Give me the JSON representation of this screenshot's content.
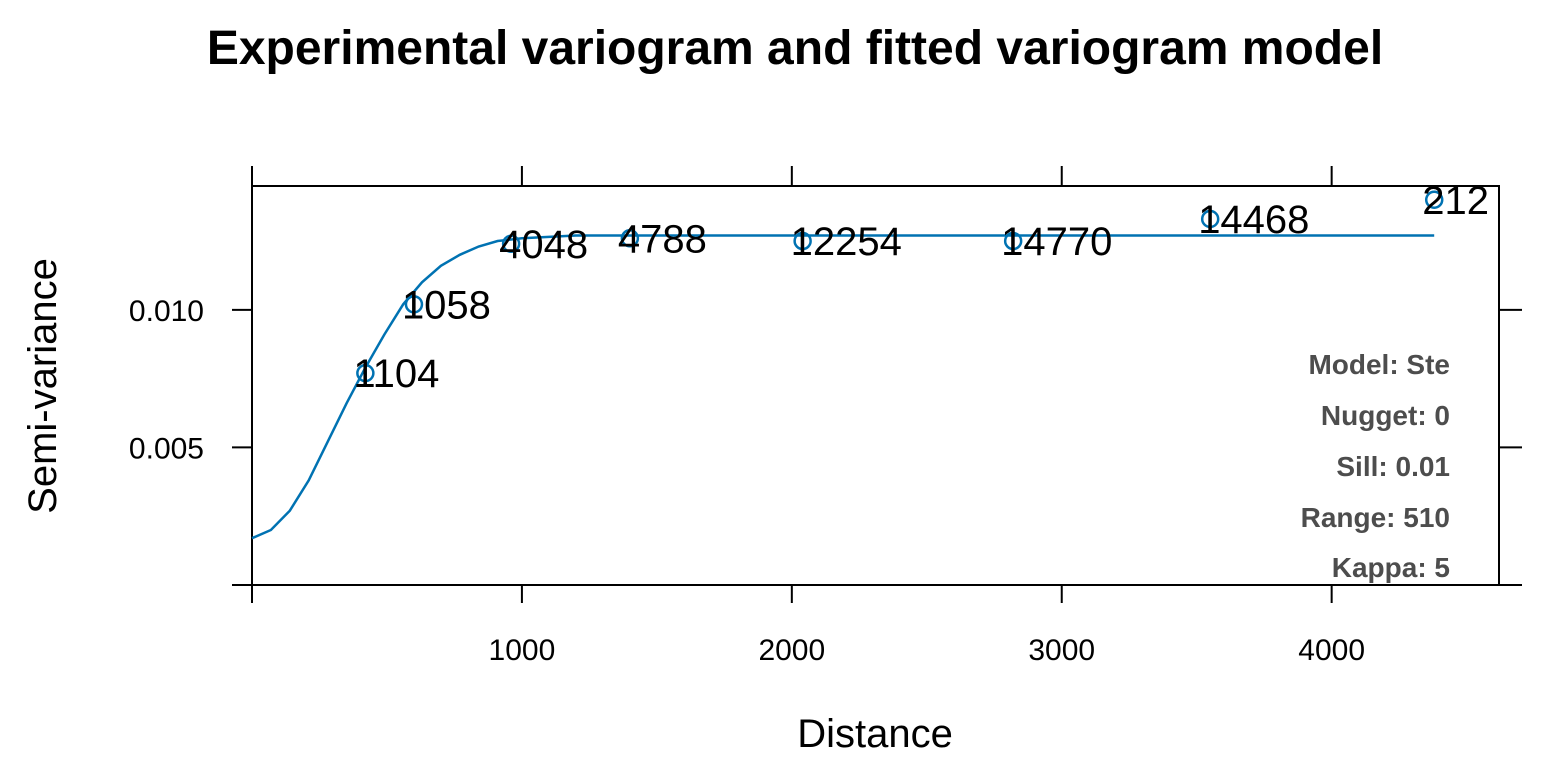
{
  "chart_data": {
    "type": "scatter",
    "title": "Experimental variogram and fitted variogram model",
    "xlabel": "Distance",
    "ylabel": "Semi-variance",
    "xlim": [
      0,
      4620
    ],
    "ylim": [
      0,
      0.0145
    ],
    "x_ticks": [
      {
        "value": 1000,
        "label": "1000"
      },
      {
        "value": 2000,
        "label": "2000"
      },
      {
        "value": 3000,
        "label": "3000"
      },
      {
        "value": 4000,
        "label": "4000"
      }
    ],
    "y_ticks": [
      {
        "value": 0.005,
        "label": "0.005"
      },
      {
        "value": 0.01,
        "label": "0.010"
      }
    ],
    "series": [
      {
        "kind": "points",
        "x": [
          420,
          600,
          960,
          1400,
          2040,
          2820,
          3550,
          4380
        ],
        "y": [
          0.0077,
          0.0102,
          0.0124,
          0.0126,
          0.0125,
          0.0125,
          0.0133,
          0.014
        ],
        "labels": [
          "1104",
          "1058",
          "4048",
          "4788",
          "12254",
          "14770",
          "14468",
          "212"
        ]
      },
      {
        "kind": "model",
        "x": [
          0,
          70,
          140,
          210,
          280,
          350,
          420,
          490,
          560,
          630,
          700,
          770,
          840,
          910,
          1000,
          1200,
          1500,
          2000,
          2500,
          3000,
          3500,
          4000,
          4380
        ],
        "y": [
          0.0017,
          0.002,
          0.0027,
          0.0038,
          0.0052,
          0.0066,
          0.0079,
          0.0091,
          0.0102,
          0.011,
          0.0116,
          0.012,
          0.0123,
          0.0125,
          0.0126,
          0.0127,
          0.0127,
          0.0127,
          0.0127,
          0.0127,
          0.0127,
          0.0127,
          0.0127
        ]
      }
    ],
    "grid": false,
    "colors": {
      "series": "#0072b2",
      "info_text": "#4d4d4d"
    }
  },
  "model_info": [
    "Model: Ste",
    "Nugget: 0",
    "Sill: 0.01",
    "Range: 510",
    "Kappa: 5"
  ]
}
